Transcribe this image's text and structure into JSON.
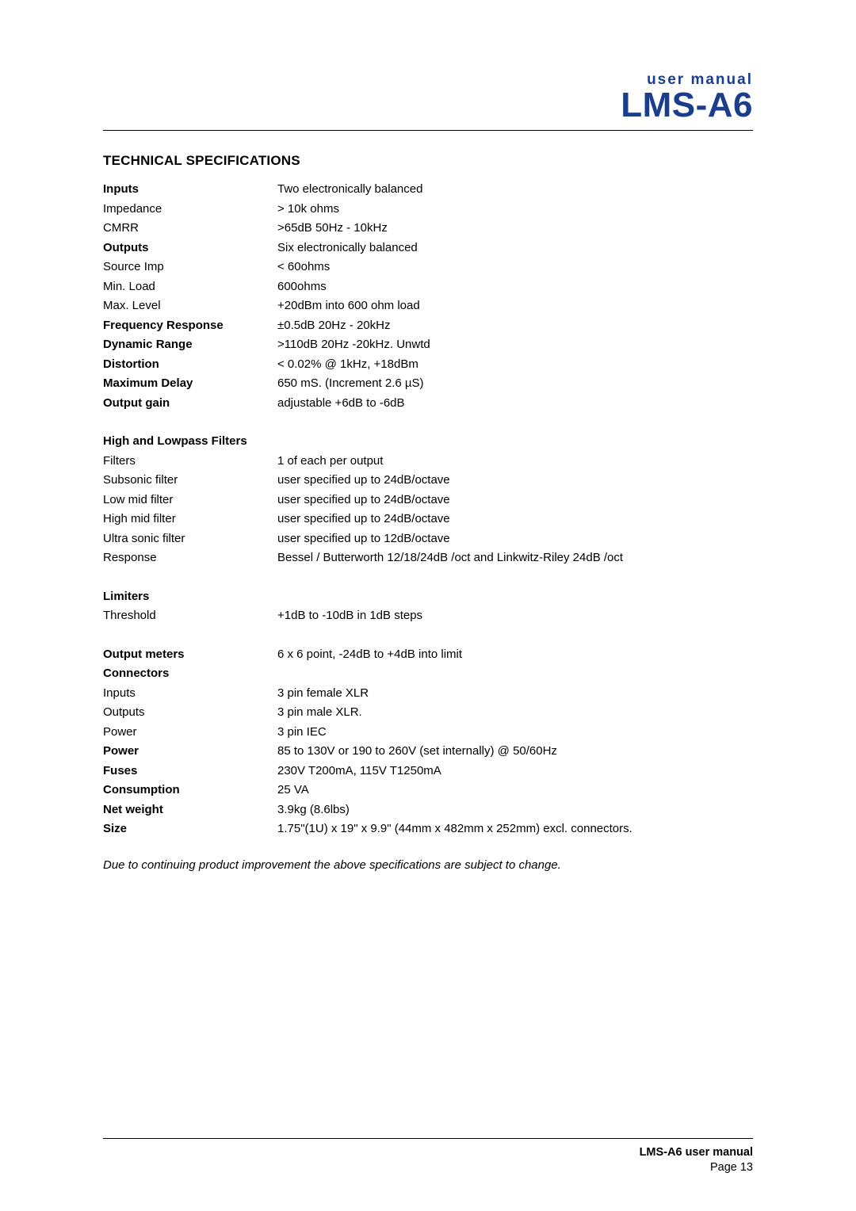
{
  "header": {
    "small": "user manual",
    "product": "LMS-A6"
  },
  "section_title": "TECHNICAL SPECIFICATIONS",
  "specs": [
    {
      "label": "Inputs",
      "value": "Two electronically balanced",
      "bold": true
    },
    {
      "label": "Impedance",
      "value": "> 10k ohms",
      "bold": false
    },
    {
      "label": "CMRR",
      "value": ">65dB 50Hz - 10kHz",
      "bold": false
    },
    {
      "label": "Outputs",
      "value": "Six electronically balanced",
      "bold": true
    },
    {
      "label": "Source Imp",
      "value": "< 60ohms",
      "bold": false
    },
    {
      "label": "Min. Load",
      "value": "600ohms",
      "bold": false
    },
    {
      "label": "Max. Level",
      "value": "+20dBm into 600 ohm load",
      "bold": false
    },
    {
      "label": "Frequency Response",
      "value": "±0.5dB 20Hz - 20kHz",
      "bold": true
    },
    {
      "label": "Dynamic Range",
      "value": ">110dB 20Hz -20kHz. Unwtd",
      "bold": true
    },
    {
      "label": "Distortion",
      "value": "< 0.02% @ 1kHz, +18dBm",
      "bold": true
    },
    {
      "label": "Maximum Delay",
      "value": "650 mS. (Increment 2.6 µS)",
      "bold": true
    },
    {
      "label": "Output gain",
      "value": "adjustable +6dB to -6dB",
      "bold": true
    }
  ],
  "filters_heading": "High and Lowpass Filters",
  "filters": [
    {
      "label": "Filters",
      "value": "1 of each per output",
      "bold": false
    },
    {
      "label": "Subsonic filter",
      "value": "user specified up to 24dB/octave",
      "bold": false
    },
    {
      "label": "Low mid filter",
      "value": "user specified up to 24dB/octave",
      "bold": false
    },
    {
      "label": "High mid filter",
      "value": "user specified up to 24dB/octave",
      "bold": false
    },
    {
      "label": "Ultra sonic filter",
      "value": "user specified up to 12dB/octave",
      "bold": false
    },
    {
      "label": "Response",
      "value": "Bessel / Butterworth 12/18/24dB /oct and Linkwitz-Riley 24dB /oct",
      "bold": false
    }
  ],
  "limiters_heading": "Limiters",
  "limiters": [
    {
      "label": "Threshold",
      "value": "+1dB to -10dB in 1dB steps",
      "bold": false
    }
  ],
  "misc": [
    {
      "label": "Output meters",
      "value": "6 x 6 point, -24dB to +4dB into limit",
      "bold": true
    },
    {
      "label": "Connectors",
      "value": "",
      "bold": true
    },
    {
      "label": "Inputs",
      "value": "3 pin female XLR",
      "bold": false
    },
    {
      "label": "Outputs",
      "value": "3 pin male XLR.",
      "bold": false
    },
    {
      "label": "Power",
      "value": "3 pin IEC",
      "bold": false
    },
    {
      "label": "Power",
      "value": "85 to 130V or 190 to 260V (set internally) @ 50/60Hz",
      "bold": true
    },
    {
      "label": "Fuses",
      "value": "230V T200mA, 115V T1250mA",
      "bold": true
    },
    {
      "label": "Consumption",
      "value": "25 VA",
      "bold": true
    },
    {
      "label": "Net weight",
      "value": "3.9kg (8.6lbs)",
      "bold": true
    },
    {
      "label": "Size",
      "value": "1.75\"(1U) x 19\" x 9.9\" (44mm x 482mm x 252mm) excl. connectors.",
      "bold": true
    }
  ],
  "footnote": "Due to continuing product improvement the above specifications are subject to change.",
  "footer": {
    "title": "LMS-A6 user manual",
    "page": "Page 13"
  }
}
